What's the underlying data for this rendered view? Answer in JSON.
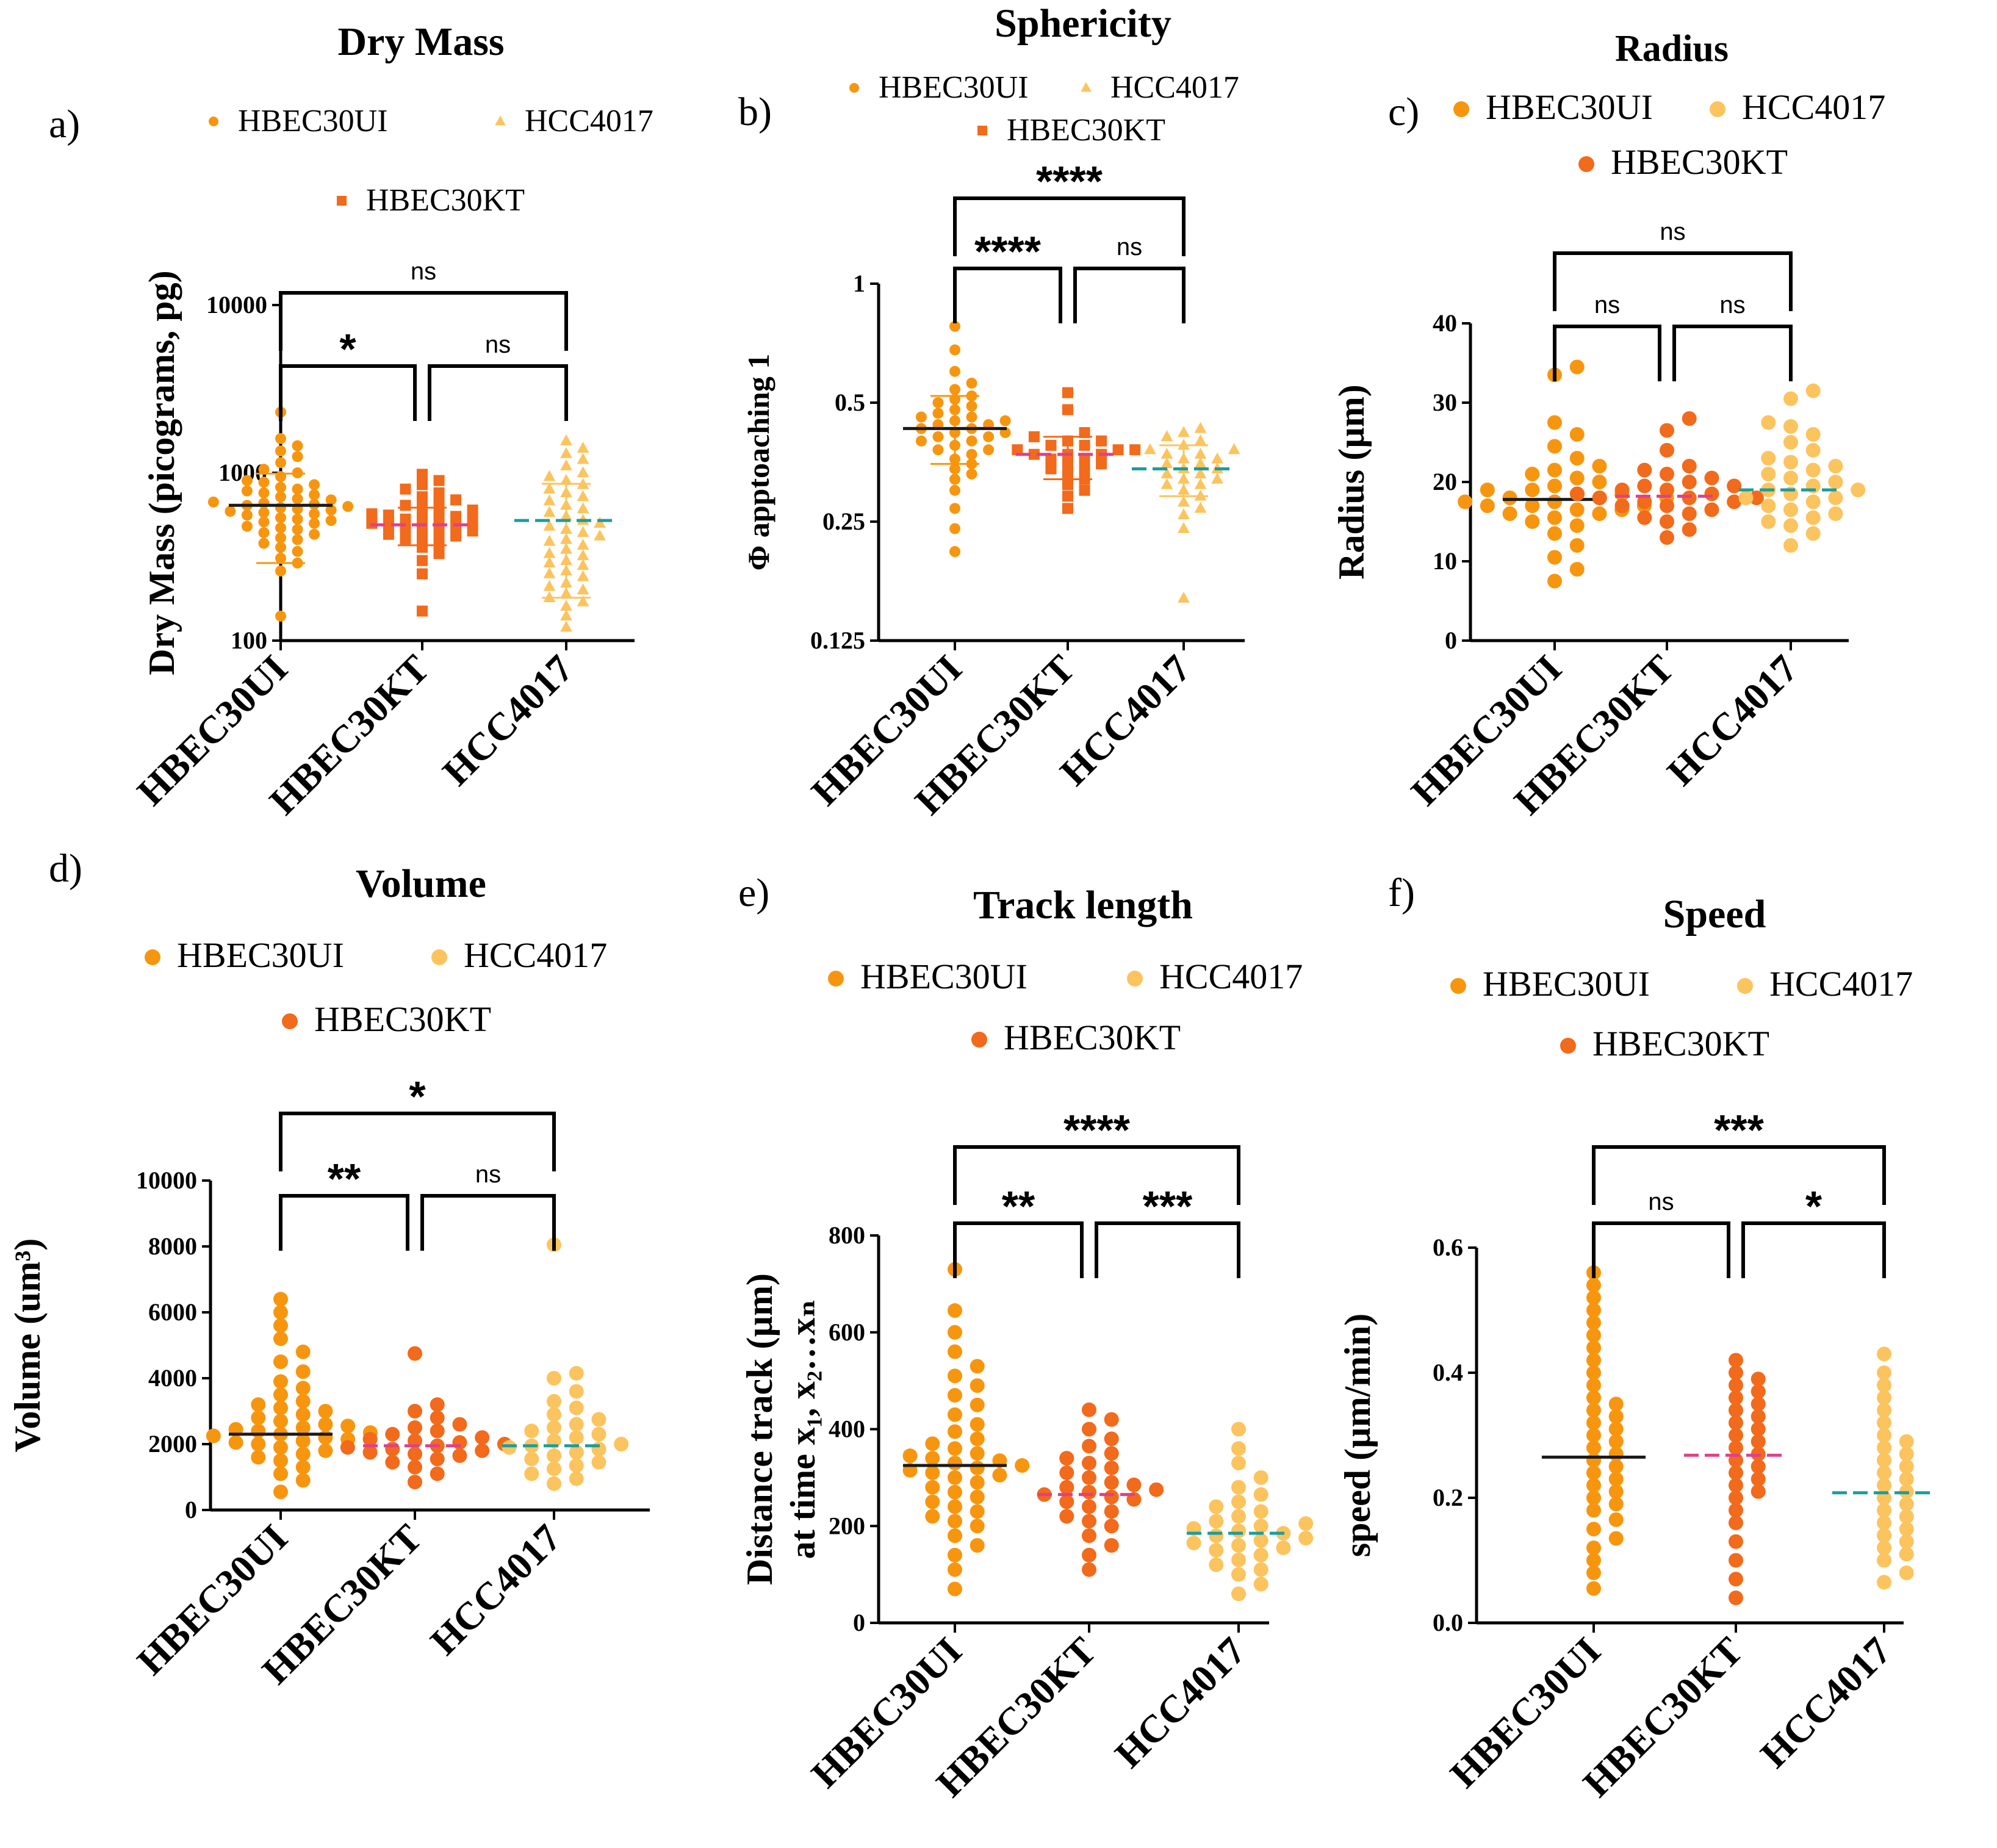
{
  "colors": {
    "HBEC30UI": "#f7960e",
    "HBEC30KT": "#f26a1b",
    "HCC4017": "#fcc45e",
    "mean_HBEC30UI": "#1a1a1a",
    "mean_HBEC30KT": "#e0408a",
    "mean_HCC4017": "#1a9e9e",
    "axis": "#000000"
  },
  "chart_data": [
    {
      "id": "a",
      "panel_label": "a)",
      "type": "scatter",
      "title": "Dry Mass",
      "ylabel": "Dry Mass (picograms, pg)",
      "yscale": "log",
      "ylim": [
        100,
        10000
      ],
      "yticks": [
        100,
        1000,
        10000
      ],
      "ytick_labels": [
        "100",
        "1000",
        "10000"
      ],
      "categories": [
        "HBEC30UI",
        "HBEC30KT",
        "HCC4017"
      ],
      "marker_shapes": [
        "circle",
        "square",
        "triangle"
      ],
      "legend": [
        "HBEC30UI",
        "HCC4017",
        "HBEC30KT"
      ],
      "means": [
        640,
        490,
        520
      ],
      "sd": [
        [
          290,
          990
        ],
        [
          370,
          620
        ],
        [
          180,
          860
        ]
      ],
      "series": [
        {
          "name": "HBEC30UI",
          "values": [
            140,
            260,
            290,
            310,
            340,
            360,
            380,
            400,
            410,
            430,
            440,
            460,
            470,
            480,
            500,
            510,
            520,
            530,
            540,
            560,
            570,
            580,
            590,
            600,
            610,
            620,
            630,
            640,
            650,
            660,
            670,
            690,
            700,
            720,
            740,
            760,
            780,
            800,
            820,
            850,
            880,
            900,
            950,
            1000,
            1050,
            1150,
            1250,
            1350,
            1450,
            1600,
            2300
          ]
        },
        {
          "name": "HBEC30KT",
          "values": [
            150,
            250,
            300,
            330,
            360,
            380,
            400,
            410,
            420,
            430,
            440,
            450,
            460,
            470,
            480,
            490,
            500,
            510,
            520,
            530,
            540,
            550,
            560,
            570,
            580,
            600,
            620,
            640,
            660,
            690,
            720,
            760,
            800,
            850,
            900,
            980
          ]
        },
        {
          "name": "HCC4017",
          "values": [
            120,
            140,
            160,
            170,
            180,
            190,
            200,
            210,
            220,
            240,
            250,
            260,
            280,
            290,
            300,
            320,
            330,
            350,
            370,
            390,
            400,
            420,
            440,
            460,
            480,
            500,
            520,
            550,
            580,
            610,
            640,
            680,
            720,
            760,
            800,
            850,
            900,
            950,
            1000,
            1100,
            1200,
            1300,
            1400,
            1550
          ]
        }
      ],
      "brackets": [
        {
          "from": 0,
          "to": 2,
          "label": "ns",
          "level": 2
        },
        {
          "from": 0,
          "to": 1,
          "label": "*",
          "level": 1
        },
        {
          "from": 1,
          "to": 2,
          "label": "ns",
          "level": 1
        }
      ]
    },
    {
      "id": "b",
      "panel_label": "b)",
      "type": "scatter",
      "title": "Sphericity",
      "ylabel": "Φ apptoaching 1",
      "yscale": "log2",
      "ylim": [
        0.125,
        1
      ],
      "yticks": [
        0.125,
        0.25,
        0.5,
        1
      ],
      "ytick_labels": [
        "0.125",
        "0.25",
        "0.5",
        "1"
      ],
      "categories": [
        "HBEC30UI",
        "HBEC30KT",
        "HCC4017"
      ],
      "marker_shapes": [
        "circle",
        "square",
        "triangle"
      ],
      "legend": [
        "HBEC30UI",
        "HCC4017",
        "HBEC30KT"
      ],
      "means": [
        0.43,
        0.37,
        0.34
      ],
      "sd": [
        [
          0.35,
          0.52
        ],
        [
          0.32,
          0.41
        ],
        [
          0.29,
          0.39
        ]
      ],
      "series": [
        {
          "name": "HBEC30UI",
          "values": [
            0.21,
            0.24,
            0.27,
            0.3,
            0.32,
            0.33,
            0.34,
            0.35,
            0.36,
            0.37,
            0.38,
            0.38,
            0.39,
            0.4,
            0.4,
            0.41,
            0.41,
            0.42,
            0.42,
            0.43,
            0.43,
            0.44,
            0.44,
            0.45,
            0.45,
            0.46,
            0.46,
            0.47,
            0.48,
            0.49,
            0.5,
            0.51,
            0.52,
            0.54,
            0.56,
            0.6,
            0.68,
            0.78
          ]
        },
        {
          "name": "HBEC30KT",
          "values": [
            0.27,
            0.29,
            0.3,
            0.31,
            0.32,
            0.33,
            0.34,
            0.34,
            0.35,
            0.35,
            0.36,
            0.36,
            0.37,
            0.37,
            0.37,
            0.38,
            0.38,
            0.38,
            0.39,
            0.39,
            0.4,
            0.4,
            0.41,
            0.42,
            0.48,
            0.53
          ]
        },
        {
          "name": "HCC4017",
          "values": [
            0.16,
            0.24,
            0.26,
            0.27,
            0.28,
            0.29,
            0.3,
            0.31,
            0.31,
            0.32,
            0.32,
            0.33,
            0.33,
            0.34,
            0.34,
            0.35,
            0.35,
            0.36,
            0.36,
            0.37,
            0.37,
            0.38,
            0.38,
            0.39,
            0.4,
            0.41,
            0.42,
            0.43
          ]
        }
      ],
      "brackets": [
        {
          "from": 0,
          "to": 2,
          "label": "****",
          "level": 2
        },
        {
          "from": 0,
          "to": 1,
          "label": "****",
          "level": 1
        },
        {
          "from": 1,
          "to": 2,
          "label": "ns",
          "level": 1
        }
      ]
    },
    {
      "id": "c",
      "panel_label": "c)",
      "type": "scatter",
      "title": "Radius",
      "ylabel": "Radius (µm)",
      "yscale": "linear",
      "ylim": [
        0,
        40
      ],
      "yticks": [
        0,
        10,
        20,
        30,
        40
      ],
      "ytick_labels": [
        "0",
        "10",
        "20",
        "30",
        "40"
      ],
      "categories": [
        "HBEC30UI",
        "HBEC30KT",
        "HCC4017"
      ],
      "marker_shapes": [
        "circle",
        "circle",
        "circle"
      ],
      "legend": [
        "HBEC30UI",
        "HCC4017",
        "HBEC30KT"
      ],
      "means": [
        17.8,
        18.2,
        19.0
      ],
      "series": [
        {
          "name": "HBEC30UI",
          "values": [
            7.5,
            9,
            10.5,
            12,
            13.5,
            14.5,
            15,
            15.5,
            16,
            16,
            16.5,
            16.5,
            17,
            17,
            17,
            17.5,
            17.5,
            18,
            18,
            18,
            18.5,
            18.5,
            19,
            19,
            19.5,
            20,
            20.5,
            21,
            21.5,
            22,
            23,
            24.5,
            26,
            27.5,
            33.5,
            34.5
          ]
        },
        {
          "name": "HBEC30KT",
          "values": [
            13,
            14,
            15,
            15.5,
            16,
            16.5,
            17,
            17,
            17.5,
            17.5,
            18,
            18,
            18,
            18.5,
            18.5,
            19,
            19,
            19.5,
            19.5,
            20,
            20.5,
            21,
            21.5,
            22,
            24,
            26.5,
            28
          ]
        },
        {
          "name": "HCC4017",
          "values": [
            12,
            13.5,
            14.5,
            15,
            15.5,
            16,
            16.5,
            17,
            17.5,
            18,
            18,
            18.5,
            19,
            19,
            19.5,
            20,
            20.5,
            21,
            21.5,
            22,
            22.5,
            23,
            24,
            25,
            26,
            27,
            27.5,
            30.5,
            31.5
          ]
        }
      ],
      "brackets": [
        {
          "from": 0,
          "to": 2,
          "label": "ns",
          "level": 2
        },
        {
          "from": 0,
          "to": 1,
          "label": "ns",
          "level": 1
        },
        {
          "from": 1,
          "to": 2,
          "label": "ns",
          "level": 1
        }
      ]
    },
    {
      "id": "d",
      "panel_label": "d)",
      "type": "scatter",
      "title": "Volume",
      "ylabel": "Volume (um³)",
      "yscale": "linear",
      "ylim": [
        0,
        10000
      ],
      "yticks": [
        0,
        2000,
        4000,
        6000,
        8000,
        10000
      ],
      "ytick_labels": [
        "0",
        "2000",
        "4000",
        "6000",
        "8000",
        "10000"
      ],
      "categories": [
        "HBEC30UI",
        "HBEC30KT",
        "HCC4017"
      ],
      "marker_shapes": [
        "circle",
        "circle",
        "circle"
      ],
      "legend": [
        "HBEC30UI",
        "HCC4017",
        "HBEC30KT"
      ],
      "means": [
        2300,
        1950,
        1950
      ],
      "series": [
        {
          "name": "HBEC30UI",
          "values": [
            550,
            900,
            1100,
            1300,
            1500,
            1600,
            1700,
            1800,
            1900,
            2000,
            2050,
            2100,
            2150,
            2200,
            2250,
            2300,
            2350,
            2400,
            2450,
            2500,
            2550,
            2600,
            2700,
            2800,
            2900,
            3000,
            3100,
            3200,
            3300,
            3500,
            3700,
            3900,
            4200,
            4500,
            4800,
            5200,
            5600,
            6000,
            6400
          ]
        },
        {
          "name": "HBEC30KT",
          "values": [
            850,
            1100,
            1300,
            1450,
            1550,
            1650,
            1700,
            1750,
            1800,
            1850,
            1900,
            1950,
            2000,
            2050,
            2100,
            2150,
            2200,
            2300,
            2400,
            2500,
            2600,
            2800,
            3000,
            3200,
            4750
          ]
        },
        {
          "name": "HCC4017",
          "values": [
            800,
            950,
            1100,
            1250,
            1350,
            1450,
            1550,
            1650,
            1750,
            1850,
            1900,
            1950,
            2000,
            2100,
            2200,
            2300,
            2400,
            2500,
            2600,
            2750,
            2900,
            3100,
            3300,
            3600,
            4000,
            4150,
            8050
          ]
        }
      ],
      "brackets": [
        {
          "from": 0,
          "to": 2,
          "label": "*",
          "level": 2
        },
        {
          "from": 0,
          "to": 1,
          "label": "**",
          "level": 1
        },
        {
          "from": 1,
          "to": 2,
          "label": "ns",
          "level": 1
        }
      ]
    },
    {
      "id": "e",
      "panel_label": "e)",
      "type": "scatter",
      "title": "Track length",
      "ylabel": "Distance track (µm)",
      "ylabel2": "at time x₁, x₂…xₙ",
      "yscale": "linear",
      "ylim": [
        0,
        800
      ],
      "yticks": [
        0,
        200,
        400,
        600,
        800
      ],
      "ytick_labels": [
        "0",
        "200",
        "400",
        "600",
        "800"
      ],
      "categories": [
        "HBEC30UI",
        "HBEC30KT",
        "HCC4017"
      ],
      "marker_shapes": [
        "circle",
        "circle",
        "circle"
      ],
      "legend": [
        "HBEC30UI",
        "HCC4017",
        "HBEC30KT"
      ],
      "means": [
        325,
        265,
        185
      ],
      "series": [
        {
          "name": "HBEC30UI",
          "values": [
            70,
            110,
            140,
            160,
            180,
            200,
            210,
            220,
            230,
            240,
            250,
            260,
            270,
            280,
            290,
            300,
            305,
            310,
            315,
            320,
            325,
            330,
            335,
            340,
            345,
            350,
            360,
            370,
            380,
            395,
            410,
            430,
            450,
            470,
            490,
            510,
            530,
            560,
            600,
            645,
            730
          ]
        },
        {
          "name": "HBEC30KT",
          "values": [
            110,
            140,
            160,
            180,
            200,
            210,
            220,
            230,
            240,
            250,
            255,
            260,
            265,
            270,
            275,
            280,
            285,
            290,
            300,
            310,
            320,
            330,
            340,
            350,
            365,
            380,
            400,
            420,
            440
          ]
        },
        {
          "name": "HCC4017",
          "values": [
            60,
            80,
            100,
            110,
            120,
            130,
            140,
            150,
            155,
            160,
            165,
            170,
            175,
            180,
            185,
            190,
            195,
            200,
            205,
            210,
            220,
            230,
            240,
            250,
            265,
            280,
            300,
            330,
            360,
            400
          ]
        }
      ],
      "brackets": [
        {
          "from": 0,
          "to": 2,
          "label": "****",
          "level": 2
        },
        {
          "from": 0,
          "to": 1,
          "label": "**",
          "level": 1
        },
        {
          "from": 1,
          "to": 2,
          "label": "***",
          "level": 1
        }
      ]
    },
    {
      "id": "f",
      "panel_label": "f)",
      "type": "scatter",
      "title": "Speed",
      "ylabel": "speed (µm/min)",
      "yscale": "linear",
      "ylim": [
        0,
        0.6
      ],
      "yticks": [
        0,
        0.2,
        0.4,
        0.6
      ],
      "ytick_labels": [
        "0.0",
        "0.2",
        "0.4",
        "0.6"
      ],
      "categories": [
        "HBEC30UI",
        "HBEC30KT",
        "HCC4017"
      ],
      "marker_shapes": [
        "circle",
        "circle",
        "circle"
      ],
      "legend": [
        "HBEC30UI",
        "HCC4017",
        "HBEC30KT"
      ],
      "means": [
        0.265,
        0.268,
        0.208
      ],
      "series": [
        {
          "name": "HBEC30UI",
          "values": [
            0.055,
            0.08,
            0.1,
            0.12,
            0.135,
            0.15,
            0.165,
            0.18,
            0.19,
            0.2,
            0.21,
            0.22,
            0.23,
            0.24,
            0.25,
            0.26,
            0.27,
            0.28,
            0.29,
            0.3,
            0.31,
            0.32,
            0.33,
            0.34,
            0.35,
            0.36,
            0.38,
            0.4,
            0.42,
            0.44,
            0.46,
            0.48,
            0.5,
            0.52,
            0.54,
            0.56
          ]
        },
        {
          "name": "HBEC30KT",
          "values": [
            0.04,
            0.07,
            0.1,
            0.13,
            0.16,
            0.18,
            0.2,
            0.21,
            0.22,
            0.23,
            0.24,
            0.25,
            0.26,
            0.27,
            0.28,
            0.29,
            0.3,
            0.31,
            0.32,
            0.33,
            0.34,
            0.35,
            0.36,
            0.37,
            0.38,
            0.39,
            0.4,
            0.42
          ]
        },
        {
          "name": "HCC4017",
          "values": [
            0.065,
            0.08,
            0.1,
            0.11,
            0.12,
            0.13,
            0.14,
            0.15,
            0.16,
            0.17,
            0.18,
            0.19,
            0.2,
            0.21,
            0.22,
            0.23,
            0.24,
            0.25,
            0.26,
            0.27,
            0.28,
            0.29,
            0.3,
            0.32,
            0.34,
            0.36,
            0.38,
            0.4,
            0.43
          ]
        }
      ],
      "brackets": [
        {
          "from": 0,
          "to": 2,
          "label": "***",
          "level": 2
        },
        {
          "from": 0,
          "to": 1,
          "label": "ns",
          "level": 1
        },
        {
          "from": 1,
          "to": 2,
          "label": "*",
          "level": 1
        }
      ]
    }
  ]
}
